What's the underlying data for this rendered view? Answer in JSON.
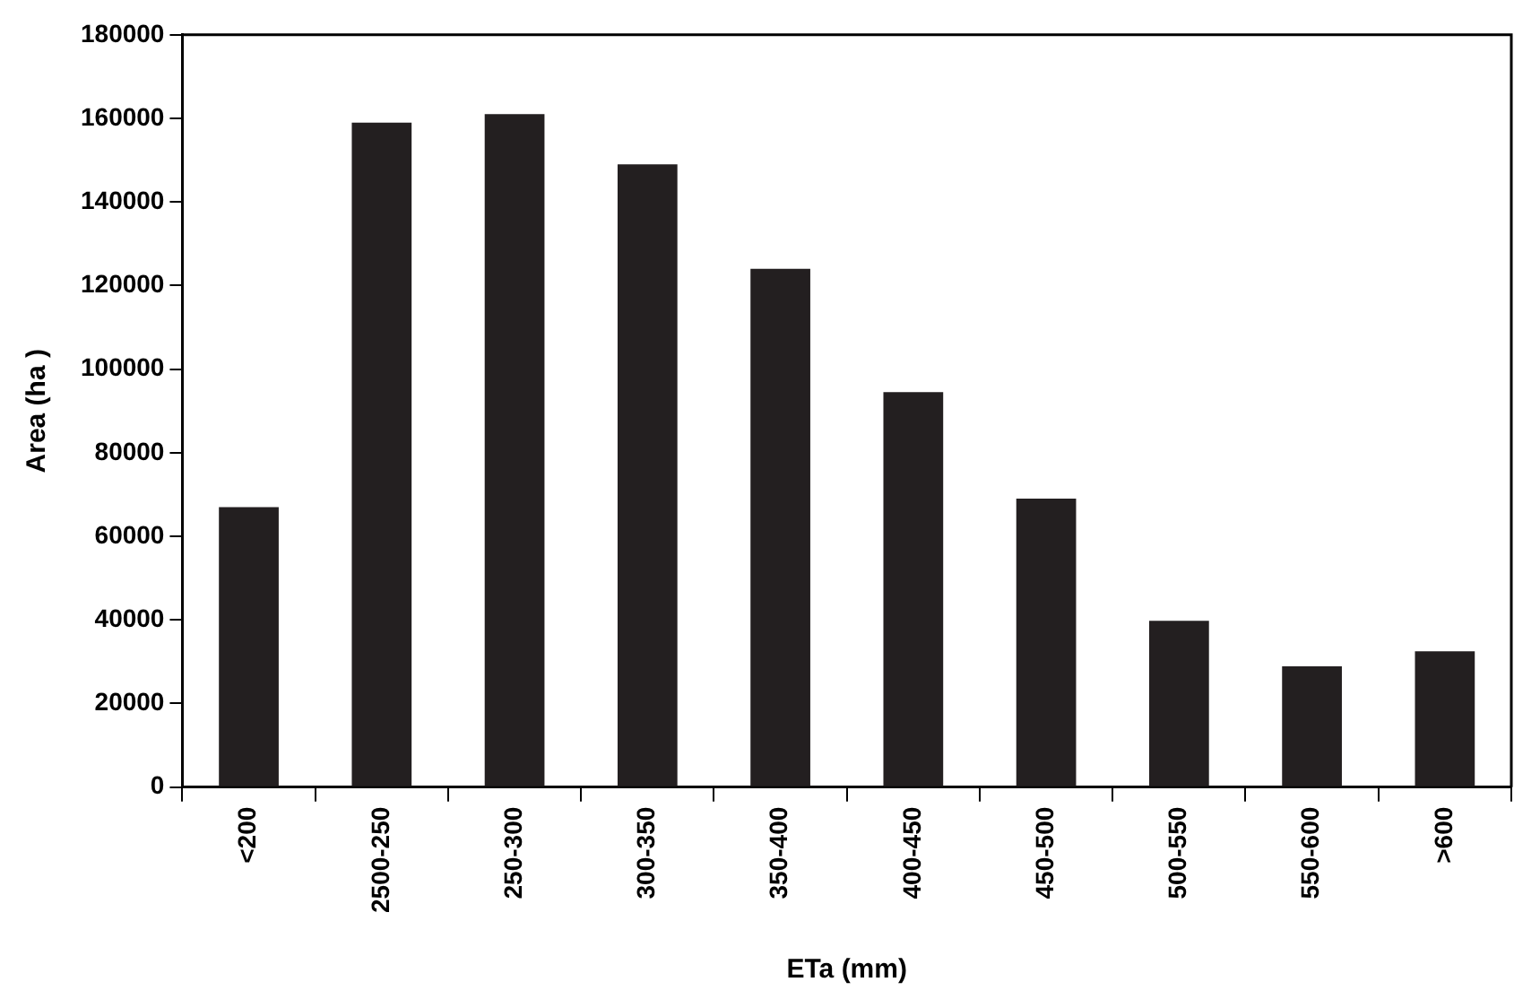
{
  "chart_data": {
    "type": "bar",
    "xlabel": "ETa (mm)",
    "ylabel": "Area (ha )",
    "categories": [
      "<200",
      "2500-250",
      "250-300",
      "300-350",
      "350-400",
      "400-450",
      "450-500",
      "500-550",
      "550-600",
      ">600"
    ],
    "values": [
      67000,
      159000,
      161000,
      149000,
      124000,
      94500,
      69000,
      39800,
      28900,
      32500
    ],
    "color": "#231f20",
    "ylim": [
      0,
      180000
    ],
    "yticks": [
      0,
      20000,
      40000,
      60000,
      80000,
      100000,
      120000,
      140000,
      160000,
      180000
    ],
    "grid": false,
    "legend": false
  }
}
